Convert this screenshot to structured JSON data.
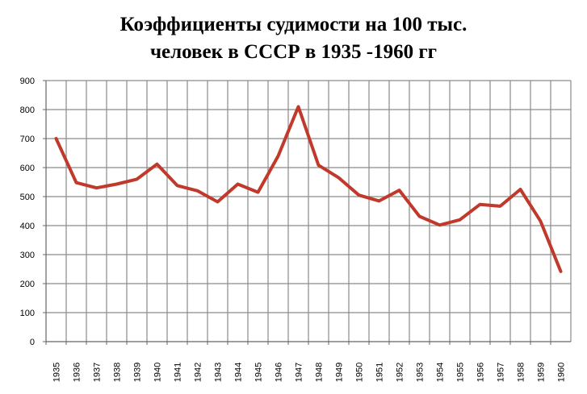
{
  "chart_data": {
    "type": "line",
    "title_lines": [
      "Коэффициенты судимости на 100 тыс.",
      "человек в СССР в 1935 -1960 гг"
    ],
    "xlabel": "",
    "ylabel": "",
    "ylim": [
      0,
      900
    ],
    "y_ticks": [
      0,
      100,
      200,
      300,
      400,
      500,
      600,
      700,
      800,
      900
    ],
    "grid": true,
    "legend": "none",
    "categories": [
      "1935",
      "1936",
      "1937",
      "1938",
      "1939",
      "1940",
      "1941",
      "1942",
      "1943",
      "1944",
      "1945",
      "1946",
      "1947",
      "1948",
      "1949",
      "1950",
      "1951",
      "1952",
      "1953",
      "1954",
      "1955",
      "1956",
      "1957",
      "1958",
      "1959",
      "1960"
    ],
    "series": [
      {
        "color": "#c0392b",
        "values": [
          700,
          548,
          530,
          543,
          560,
          612,
          538,
          520,
          482,
          543,
          515,
          640,
          810,
          608,
          565,
          505,
          485,
          522,
          432,
          402,
          420,
          473,
          467,
          525,
          415,
          242
        ]
      }
    ]
  }
}
